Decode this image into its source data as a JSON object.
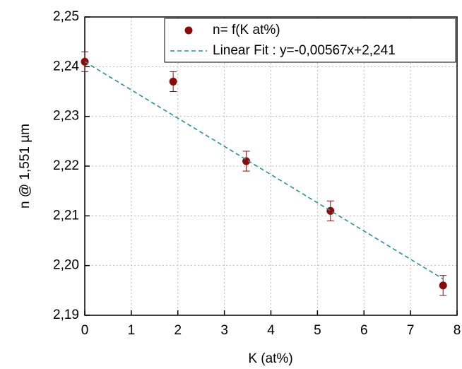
{
  "chart_data": {
    "type": "scatter",
    "x_label": "K (at%)",
    "y_label": "n @ 1,551 µm",
    "xlim": [
      0,
      8
    ],
    "ylim": [
      2.19,
      2.25
    ],
    "xticks": [
      0,
      1,
      2,
      3,
      4,
      5,
      6,
      7,
      8
    ],
    "yticks": [
      {
        "value": 2.19,
        "label": "2,19"
      },
      {
        "value": 2.2,
        "label": "2,20"
      },
      {
        "value": 2.21,
        "label": "2,21"
      },
      {
        "value": 2.22,
        "label": "2,22"
      },
      {
        "value": 2.23,
        "label": "2,23"
      },
      {
        "value": 2.24,
        "label": "2,24"
      },
      {
        "value": 2.25,
        "label": "2,25"
      }
    ],
    "grid": true,
    "legend": "upper right",
    "series": [
      {
        "name": "n= f(K at%)",
        "color": "#8b0a0a",
        "style": "markers",
        "x": [
          0,
          1.9,
          3.47,
          5.28,
          7.7
        ],
        "values": [
          2.241,
          2.237,
          2.221,
          2.211,
          2.196
        ],
        "errors": [
          0.002,
          0.002,
          0.002,
          0.002,
          0.002
        ]
      },
      {
        "name": "Linear Fit : y=-0,00567x+2,241",
        "color": "#2a8f9a",
        "style": "dashed",
        "x": [
          0,
          7.7
        ],
        "values": [
          2.241,
          2.1973
        ]
      }
    ]
  }
}
